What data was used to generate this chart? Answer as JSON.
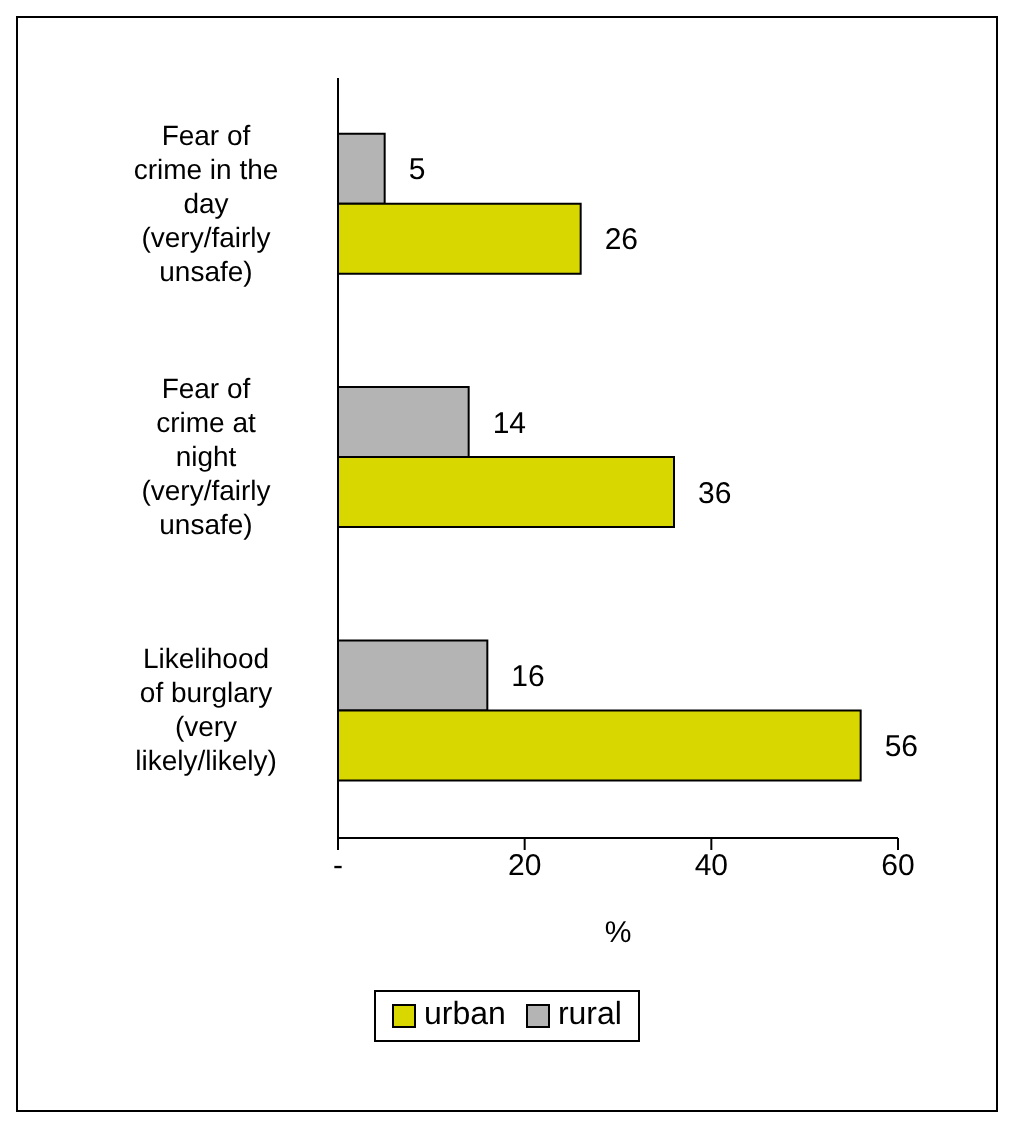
{
  "chart_data": {
    "type": "bar",
    "orientation": "horizontal",
    "xlabel": "%",
    "categories": [
      "Fear of crime in the day (very/fairly unsafe)",
      "Fear of crime at night (very/fairly unsafe)",
      "Likelihood of burglary (very likely/likely)"
    ],
    "series": [
      {
        "name": "urban",
        "color": "#d8d800",
        "values": [
          26,
          36,
          56
        ]
      },
      {
        "name": "rural",
        "color": "#b4b4b4",
        "values": [
          5,
          14,
          16
        ]
      }
    ],
    "xlim": [
      0,
      60
    ],
    "xticks": [
      {
        "value": 0,
        "label": "-"
      },
      20,
      40,
      60
    ],
    "data_labels": true,
    "grid": false,
    "legend": "bottom"
  }
}
